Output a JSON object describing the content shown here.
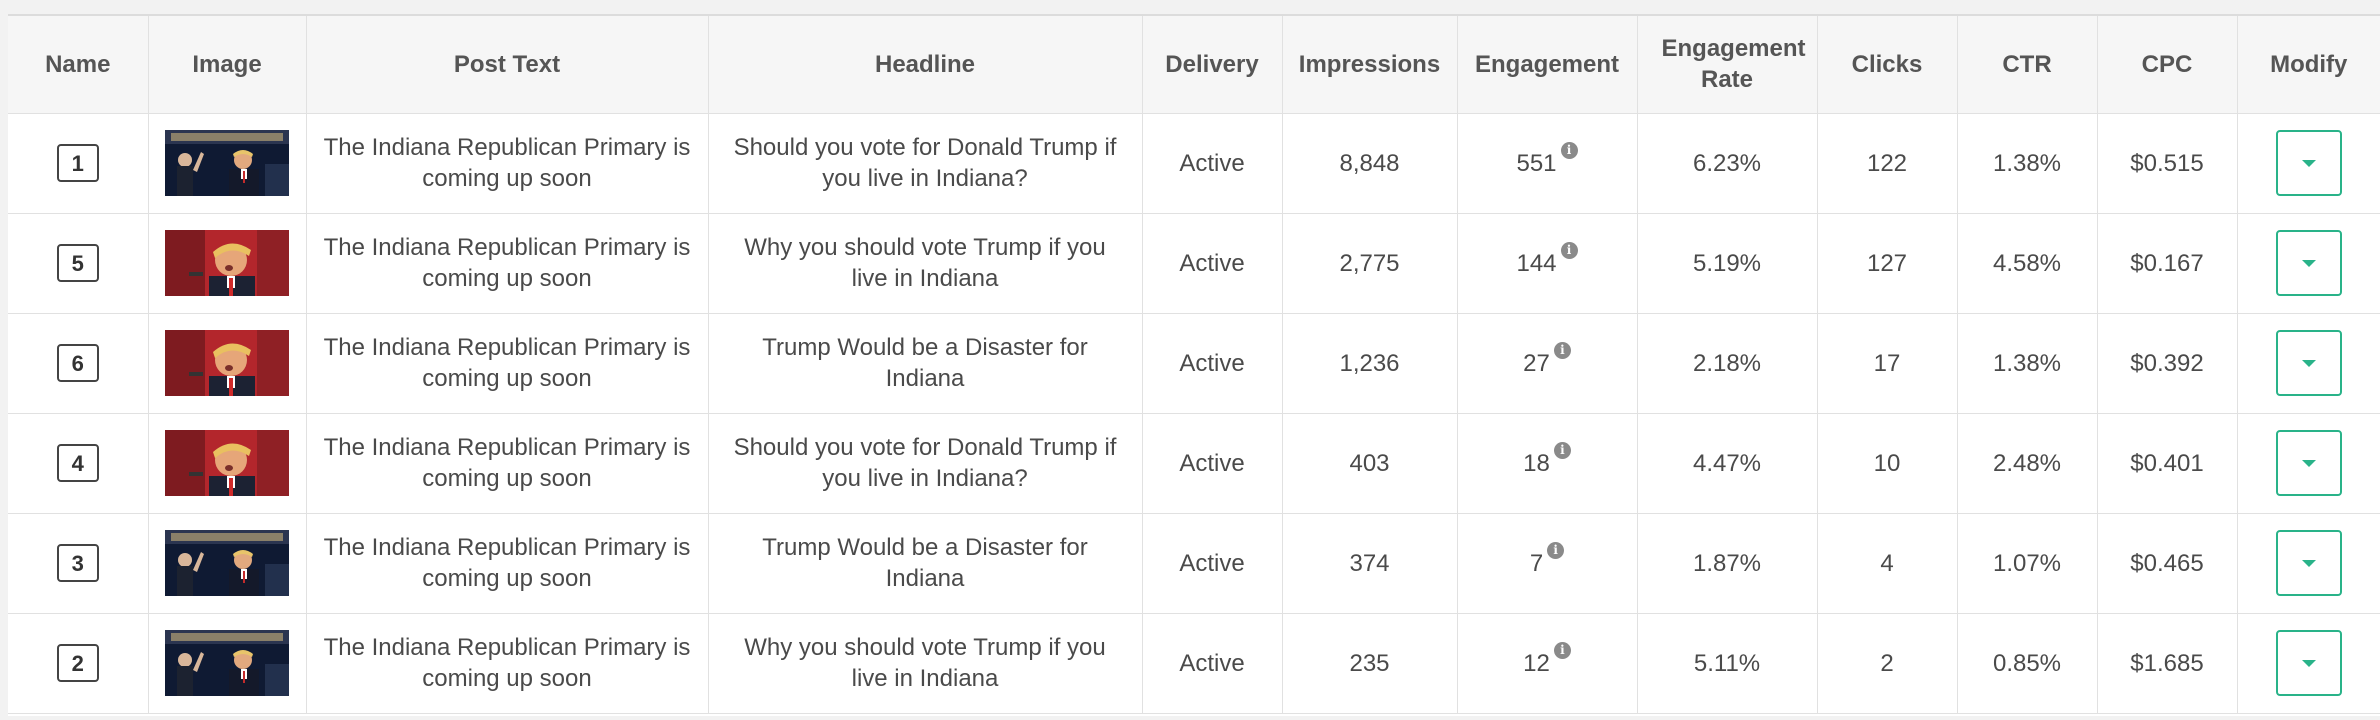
{
  "columns": [
    {
      "label": "Name"
    },
    {
      "label": "Image"
    },
    {
      "label": "Post Text"
    },
    {
      "label": "Headline"
    },
    {
      "label": "Delivery"
    },
    {
      "label": "Impressions"
    },
    {
      "label": "Engagement"
    },
    {
      "label": "Engagement Rate"
    },
    {
      "label": "Clicks"
    },
    {
      "label": "CTR"
    },
    {
      "label": "CPC"
    },
    {
      "label": "Modify"
    }
  ],
  "rows": [
    {
      "name": "1",
      "image": "crowd",
      "post_text": "The Indiana Republican Primary is coming up soon",
      "headline": "Should you vote for Donald Trump if you live in Indiana?",
      "delivery": "Active",
      "impressions": "8,848",
      "engagement": "551",
      "engagement_rate": "6.23%",
      "clicks": "122",
      "ctr": "1.38%",
      "cpc": "$0.515"
    },
    {
      "name": "5",
      "image": "portrait",
      "post_text": "The Indiana Republican Primary is coming up soon",
      "headline": "Why you should vote Trump if you live in Indiana",
      "delivery": "Active",
      "impressions": "2,775",
      "engagement": "144",
      "engagement_rate": "5.19%",
      "clicks": "127",
      "ctr": "4.58%",
      "cpc": "$0.167"
    },
    {
      "name": "6",
      "image": "portrait",
      "post_text": "The Indiana Republican Primary is coming up soon",
      "headline": "Trump Would be a Disaster for Indiana",
      "delivery": "Active",
      "impressions": "1,236",
      "engagement": "27",
      "engagement_rate": "2.18%",
      "clicks": "17",
      "ctr": "1.38%",
      "cpc": "$0.392"
    },
    {
      "name": "4",
      "image": "portrait",
      "post_text": "The Indiana Republican Primary is coming up soon",
      "headline": "Should you vote for Donald Trump if you live in Indiana?",
      "delivery": "Active",
      "impressions": "403",
      "engagement": "18",
      "engagement_rate": "4.47%",
      "clicks": "10",
      "ctr": "2.48%",
      "cpc": "$0.401"
    },
    {
      "name": "3",
      "image": "crowd",
      "post_text": "The Indiana Republican Primary is coming up soon",
      "headline": "Trump Would be a Disaster for Indiana",
      "delivery": "Active",
      "impressions": "374",
      "engagement": "7",
      "engagement_rate": "1.87%",
      "clicks": "4",
      "ctr": "1.07%",
      "cpc": "$0.465"
    },
    {
      "name": "2",
      "image": "crowd",
      "post_text": "The Indiana Republican Primary is coming up soon",
      "headline": "Why you should vote Trump if you live in Indiana",
      "delivery": "Active",
      "impressions": "235",
      "engagement": "12",
      "engagement_rate": "5.11%",
      "clicks": "2",
      "ctr": "0.85%",
      "cpc": "$1.685"
    }
  ],
  "icons": {
    "info": "info-icon",
    "dropdown": "chevron-down-icon"
  },
  "colors": {
    "accent": "#29b389",
    "header_bg": "#f6f6f6",
    "border": "#e1e1e1"
  }
}
